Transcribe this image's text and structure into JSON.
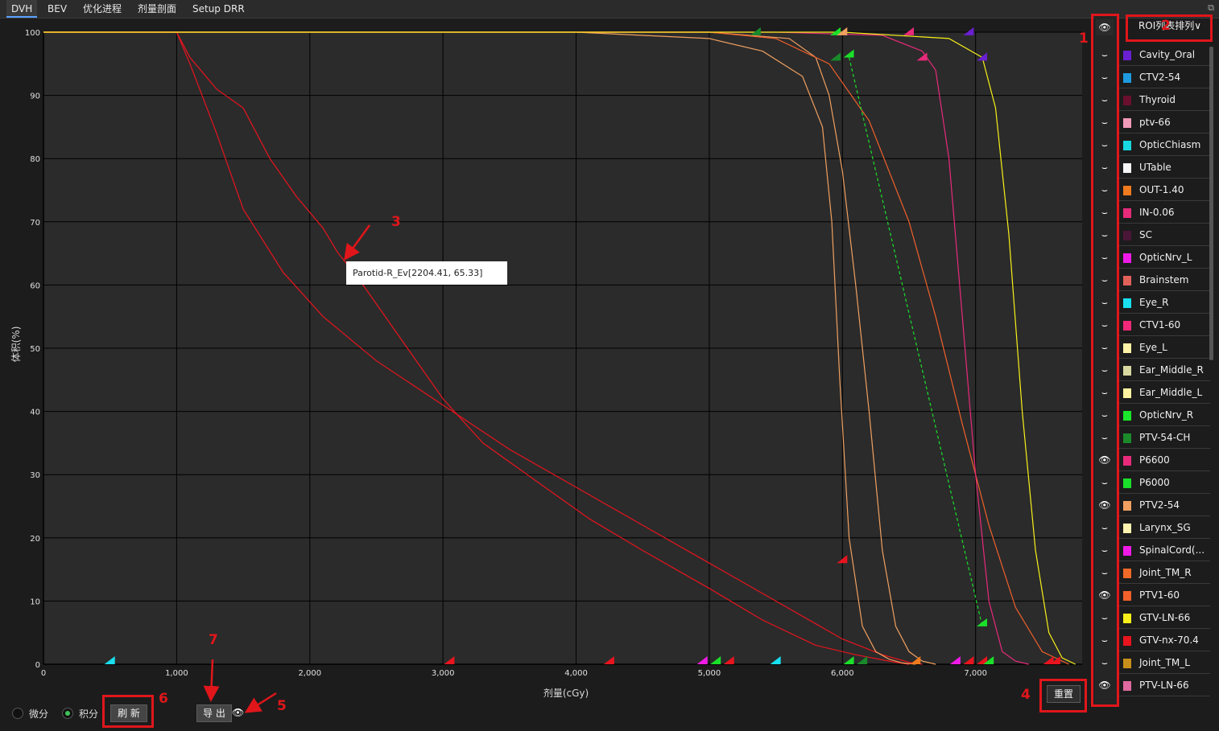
{
  "tabs": [
    {
      "label": "DVH",
      "active": true
    },
    {
      "label": "BEV"
    },
    {
      "label": "优化进程"
    },
    {
      "label": "剂量剖面"
    },
    {
      "label": "Setup DRR"
    }
  ],
  "sort_button": "ROI列表排列",
  "legend": [
    {
      "name": "Cavity_Oral",
      "color": "#6a1fd1",
      "visible": false
    },
    {
      "name": "CTV2-54",
      "color": "#1e9be0",
      "visible": false
    },
    {
      "name": "Thyroid",
      "color": "#6b0f2e",
      "visible": false
    },
    {
      "name": "ptv-66",
      "color": "#f09ab8",
      "visible": false
    },
    {
      "name": "OpticChiasm",
      "color": "#18d8e0",
      "visible": false
    },
    {
      "name": "UTable",
      "color": "#f4f6f8",
      "visible": false
    },
    {
      "name": "OUT-1.40",
      "color": "#f07a1e",
      "visible": false
    },
    {
      "name": "IN-0.06",
      "color": "#e82a7a",
      "visible": false
    },
    {
      "name": "SC",
      "color": "#4a1638",
      "visible": false
    },
    {
      "name": "OpticNrv_L",
      "color": "#f01ae8",
      "visible": false
    },
    {
      "name": "Brainstem",
      "color": "#e0605a",
      "visible": false
    },
    {
      "name": "Eye_R",
      "color": "#18e0f0",
      "visible": false
    },
    {
      "name": "CTV1-60",
      "color": "#f0287a",
      "visible": false
    },
    {
      "name": "Eye_L",
      "color": "#fff3a8",
      "visible": false
    },
    {
      "name": "Ear_Middle_R",
      "color": "#d8d8a0",
      "visible": false
    },
    {
      "name": "Ear_Middle_L",
      "color": "#fff2a0",
      "visible": false
    },
    {
      "name": "OpticNrv_R",
      "color": "#1ae82a",
      "visible": false
    },
    {
      "name": "PTV-54-CH",
      "color": "#1a8a2a",
      "visible": false
    },
    {
      "name": "P6600",
      "color": "#e82a7a",
      "visible": true
    },
    {
      "name": "P6000",
      "color": "#1ae02a",
      "visible": false
    },
    {
      "name": "PTV2-54",
      "color": "#f0a060",
      "visible": true
    },
    {
      "name": "Larynx_SG",
      "color": "#fff4b0",
      "visible": false
    },
    {
      "name": "SpinalCord(...",
      "color": "#f01ae8",
      "visible": false
    },
    {
      "name": "Joint_TM_R",
      "color": "#f06a28",
      "visible": false
    },
    {
      "name": "PTV1-60",
      "color": "#f0602a",
      "visible": true
    },
    {
      "name": "GTV-LN-66",
      "color": "#f8f01a",
      "visible": false
    },
    {
      "name": "GTV-nx-70.4",
      "color": "#e8141e",
      "visible": false
    },
    {
      "name": "Joint_TM_L",
      "color": "#c8901a",
      "visible": false
    },
    {
      "name": "PTV-LN-66",
      "color": "#e06aa0",
      "visible": true
    }
  ],
  "tooltip": "Parotid-R_Ev[2204.41, 65.33]",
  "controls": {
    "differential": "微分",
    "cumulative": "积分",
    "refresh": "刷 新",
    "export": "导 出",
    "reset": "重置"
  },
  "annotations": [
    "1",
    "2",
    "3",
    "4",
    "5",
    "6",
    "7"
  ],
  "chart_data": {
    "type": "line",
    "xlabel": "剂量(cGy)",
    "ylabel": "体积(%)",
    "xlim": [
      0,
      7800
    ],
    "ylim": [
      0,
      100
    ],
    "xticks": [
      "0",
      "1,000",
      "2,000",
      "3,000",
      "4,000",
      "5,000",
      "6,000",
      "7,000"
    ],
    "yticks": [
      "0",
      "10",
      "20",
      "30",
      "40",
      "50",
      "60",
      "70",
      "80",
      "90",
      "100"
    ],
    "grid": true,
    "series": [
      {
        "name": "Parotid-R_Ev",
        "color": "#e8141e",
        "x": [
          0,
          1000,
          1100,
          1300,
          1500,
          1700,
          1900,
          2100,
          2204,
          2400,
          2700,
          3000,
          3300,
          3700,
          4100,
          4500,
          5000,
          5400,
          5800,
          6100,
          6400,
          6500
        ],
        "y": [
          100,
          100,
          96,
          91,
          88,
          80,
          74,
          69,
          65.3,
          60,
          51,
          42,
          35,
          29,
          23,
          18,
          12,
          7,
          3,
          1.5,
          0.3,
          0
        ]
      },
      {
        "color": "#e8141e",
        "x": [
          0,
          1000,
          1100,
          1300,
          1500,
          1800,
          2100,
          2500,
          3000,
          3500,
          4000,
          4500,
          5000,
          5500,
          6000,
          6300,
          6500,
          6600
        ],
        "y": [
          100,
          100,
          95,
          84,
          72,
          62,
          55,
          48,
          41,
          34,
          28,
          22,
          16,
          10,
          4,
          1.5,
          0.3,
          0
        ]
      },
      {
        "color": "#f0a060",
        "x": [
          0,
          4000,
          5000,
          5400,
          5700,
          5850,
          5920,
          5980,
          6050,
          6150,
          6250,
          6350,
          6450,
          6550
        ],
        "y": [
          100,
          100,
          99,
          97,
          93,
          85,
          70,
          45,
          20,
          6,
          2,
          0.8,
          0.2,
          0
        ]
      },
      {
        "color": "#f0a060",
        "x": [
          0,
          5000,
          5600,
          5800,
          5900,
          6000,
          6100,
          6200,
          6300,
          6400,
          6500,
          6600,
          6700
        ],
        "y": [
          100,
          100,
          99,
          96,
          90,
          78,
          60,
          40,
          18,
          6,
          2,
          0.5,
          0
        ]
      },
      {
        "color": "#f0602a",
        "x": [
          0,
          5000,
          5500,
          5900,
          6200,
          6500,
          6700,
          6900,
          7100,
          7300,
          7500,
          7700
        ],
        "y": [
          100,
          100,
          99,
          95,
          86,
          70,
          55,
          38,
          22,
          9,
          2,
          0
        ]
      },
      {
        "color": "#e82a7a",
        "x": [
          0,
          5500,
          6300,
          6600,
          6700,
          6800,
          6900,
          7000,
          7100,
          7200,
          7300,
          7400
        ],
        "y": [
          100,
          100,
          99.5,
          97,
          94,
          80,
          55,
          30,
          10,
          2,
          0.5,
          0
        ]
      },
      {
        "color": "#f8f01a",
        "x": [
          0,
          6000,
          6800,
          7050,
          7150,
          7250,
          7350,
          7450,
          7550,
          7650,
          7750
        ],
        "y": [
          100,
          100,
          99,
          96,
          88,
          68,
          40,
          18,
          5,
          1,
          0
        ]
      },
      {
        "color": "#1ae02a",
        "dashed": true,
        "x": [
          6050,
          7050
        ],
        "y": [
          96,
          6
        ]
      }
    ],
    "markers": [
      {
        "x": 500,
        "y": 0,
        "color": "#18e0f0"
      },
      {
        "x": 3050,
        "y": 0,
        "color": "#e8141e"
      },
      {
        "x": 4250,
        "y": 0,
        "color": "#e8141e"
      },
      {
        "x": 4950,
        "y": 0,
        "color": "#f01ae8"
      },
      {
        "x": 5050,
        "y": 0,
        "color": "#1ae02a"
      },
      {
        "x": 5150,
        "y": 0,
        "color": "#e8141e"
      },
      {
        "x": 5500,
        "y": 0,
        "color": "#18e0f0"
      },
      {
        "x": 6050,
        "y": 0,
        "color": "#1ae02a"
      },
      {
        "x": 6150,
        "y": 0,
        "color": "#1a8a2a"
      },
      {
        "x": 6550,
        "y": 0,
        "color": "#f07a1e"
      },
      {
        "x": 6850,
        "y": 0,
        "color": "#f01ae8"
      },
      {
        "x": 6950,
        "y": 0,
        "color": "#e8141e"
      },
      {
        "x": 7050,
        "y": 0,
        "color": "#e8141e"
      },
      {
        "x": 7100,
        "y": 0,
        "color": "#1ae02a"
      },
      {
        "x": 7550,
        "y": 0,
        "color": "#e8141e"
      },
      {
        "x": 7600,
        "y": 0,
        "color": "#e8141e"
      },
      {
        "x": 5350,
        "y": 99.5,
        "color": "#1a8a2a"
      },
      {
        "x": 5950,
        "y": 95.5,
        "color": "#1a8a2a"
      },
      {
        "x": 5950,
        "y": 99.5,
        "color": "#1ae02a"
      },
      {
        "x": 6000,
        "y": 99.5,
        "color": "#f0a060"
      },
      {
        "x": 6050,
        "y": 96,
        "color": "#1ae02a"
      },
      {
        "x": 6500,
        "y": 99.5,
        "color": "#e82a7a"
      },
      {
        "x": 6600,
        "y": 95.5,
        "color": "#e82a7a"
      },
      {
        "x": 6950,
        "y": 99.5,
        "color": "#6a1fd1"
      },
      {
        "x": 7050,
        "y": 95.5,
        "color": "#6a1fd1"
      },
      {
        "x": 6000,
        "y": 16,
        "color": "#e8141e"
      },
      {
        "x": 7050,
        "y": 6,
        "color": "#1ae02a"
      }
    ]
  }
}
